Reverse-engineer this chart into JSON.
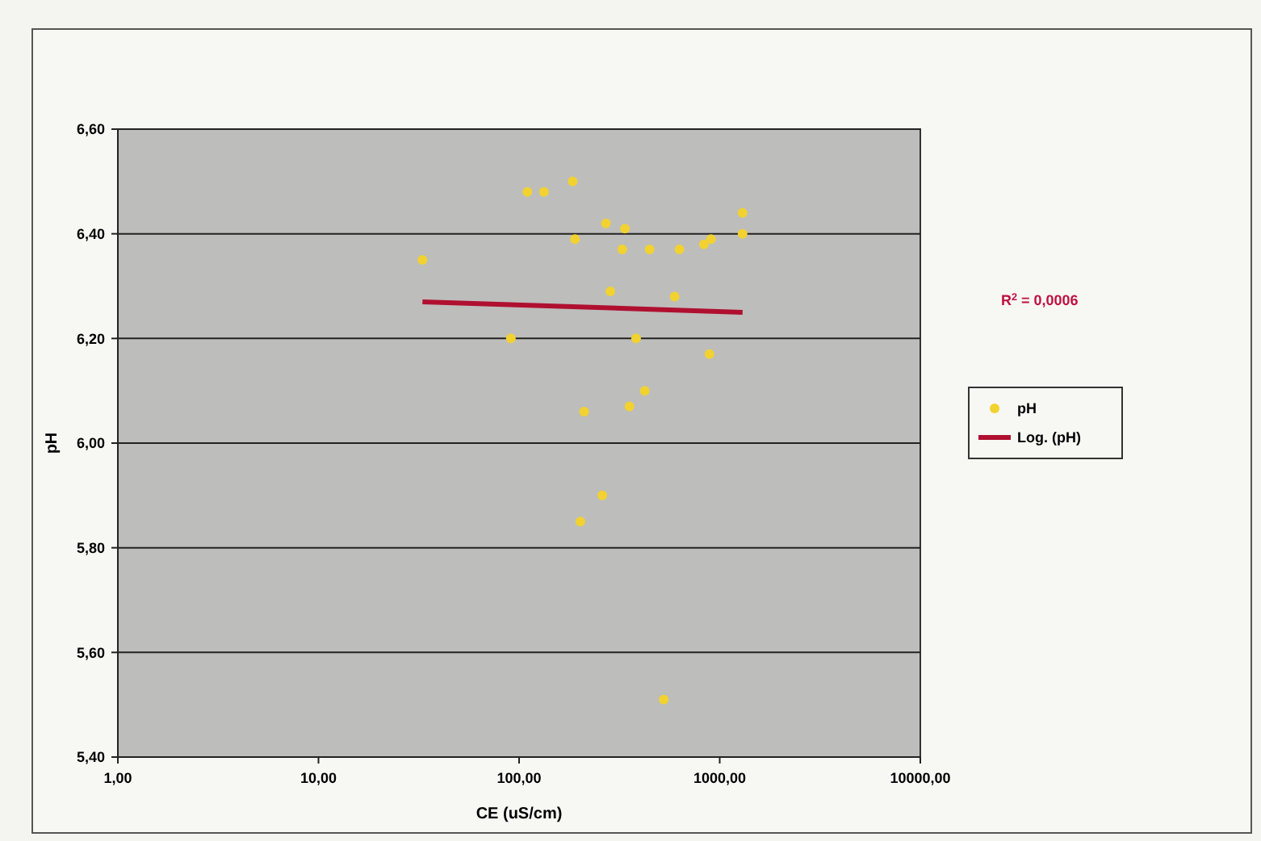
{
  "chart_data": {
    "type": "scatter",
    "xlabel": "CE (uS/cm)",
    "ylabel": "pH",
    "log": "x",
    "grid": "y",
    "legend": "right",
    "xlim": [
      1,
      10000
    ],
    "ylim": [
      5.4,
      6.6
    ],
    "xticks": [
      {
        "value": 1,
        "label": "1,00"
      },
      {
        "value": 10,
        "label": "10,00"
      },
      {
        "value": 100,
        "label": "100,00"
      },
      {
        "value": 1000,
        "label": "1000,00"
      },
      {
        "value": 10000,
        "label": "10000,00"
      }
    ],
    "yticks": [
      {
        "value": 5.4,
        "label": "5,40"
      },
      {
        "value": 5.6,
        "label": "5,60"
      },
      {
        "value": 5.8,
        "label": "5,80"
      },
      {
        "value": 6.0,
        "label": "6,00"
      },
      {
        "value": 6.2,
        "label": "6,20"
      },
      {
        "value": 6.4,
        "label": "6,40"
      },
      {
        "value": 6.6,
        "label": "6,60"
      }
    ],
    "annotations": [
      "R$^{2}$ = 0,0006"
    ],
    "series": [
      {
        "name": "pH",
        "color": "#f2d230",
        "marker": "circle",
        "x": [
          33,
          110,
          133,
          185,
          271,
          337,
          190,
          327,
          447,
          630,
          834,
          905,
          1300,
          1300,
          285,
          596,
          91,
          383,
          889,
          423,
          355,
          211,
          260,
          202,
          526
        ],
        "values": [
          6.35,
          6.48,
          6.48,
          6.5,
          6.42,
          6.41,
          6.39,
          6.37,
          6.37,
          6.37,
          6.38,
          6.39,
          6.44,
          6.4,
          6.29,
          6.28,
          6.2,
          6.2,
          6.17,
          6.1,
          6.07,
          6.06,
          5.9,
          5.85,
          5.51
        ]
      },
      {
        "name": "Log. (pH)",
        "type": "line",
        "color": "#b01030",
        "marker": "none",
        "line_style": "solid",
        "x": [
          33,
          1300
        ],
        "values": [
          6.27,
          6.25
        ]
      }
    ]
  }
}
